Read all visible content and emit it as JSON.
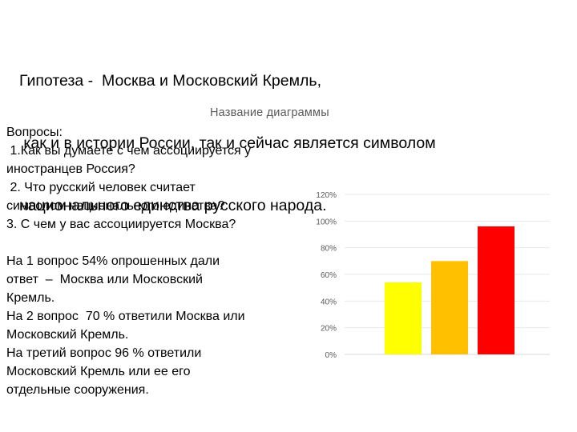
{
  "hypothesis": {
    "lines": [
      "Гипотеза -  Москва и Московский Кремль,",
      " как и в истории России, так и сейчас является символом",
      "национального единства русского народа."
    ]
  },
  "questions": {
    "heading": "Вопросы:",
    "lines": [
      " 1.Как вы думаете с чем ассоциируется у",
      "иностранцев Россия?",
      " 2. Что русский человек считает",
      "символом национального единства?",
      "3. С чем у вас ассоциируется Москва?"
    ]
  },
  "answers": {
    "lines": [
      "На 1 вопрос 54% опрошенных дали",
      "ответ  –  Москва или Московский",
      "Кремль.",
      "На 2 вопрос  70 % ответили Москва или",
      "Московский Кремль.",
      "На третий вопрос 96 % ответили",
      "Московский Кремль или ее его",
      "отдельные сооружения."
    ]
  },
  "chart_data": {
    "type": "bar",
    "title": "Название диаграммы",
    "categories": [
      "",
      "",
      ""
    ],
    "values": [
      54,
      70,
      96
    ],
    "colors": [
      "#FFFF00",
      "#FFC000",
      "#FF0000"
    ],
    "ylim": [
      0,
      120
    ],
    "yticks": [
      "0%",
      "20%",
      "40%",
      "60%",
      "80%",
      "100%",
      "120%"
    ],
    "grid": true,
    "xlabel": "",
    "ylabel": ""
  }
}
